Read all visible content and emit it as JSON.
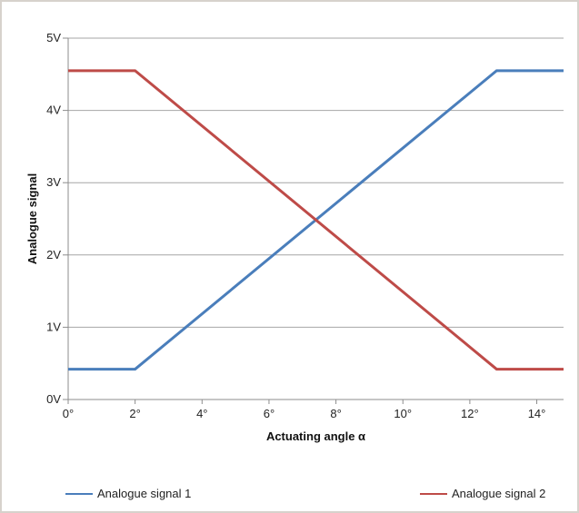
{
  "chart_data": {
    "type": "line",
    "title": "",
    "xlabel": "Actuating angle α",
    "ylabel": "Analogue signal",
    "xlim": [
      0,
      14.8
    ],
    "ylim": [
      0,
      5
    ],
    "grid": "horizontal",
    "x_ticks": [
      {
        "value": 0,
        "label": "0°"
      },
      {
        "value": 2,
        "label": "2°"
      },
      {
        "value": 4,
        "label": "4°"
      },
      {
        "value": 6,
        "label": "6°"
      },
      {
        "value": 8,
        "label": "8°"
      },
      {
        "value": 10,
        "label": "10°"
      },
      {
        "value": 12,
        "label": "12°"
      },
      {
        "value": 14,
        "label": "14°"
      }
    ],
    "y_ticks": [
      {
        "value": 0,
        "label": "0V"
      },
      {
        "value": 1,
        "label": "1V"
      },
      {
        "value": 2,
        "label": "2V"
      },
      {
        "value": 3,
        "label": "3V"
      },
      {
        "value": 4,
        "label": "4V"
      },
      {
        "value": 5,
        "label": "5V"
      }
    ],
    "legend_position": "bottom",
    "series": [
      {
        "name": "Analogue signal 1",
        "color": "#4a7ebb",
        "x": [
          0,
          2,
          12.8,
          14.8
        ],
        "y": [
          0.42,
          0.42,
          4.55,
          4.55
        ]
      },
      {
        "name": "Analogue signal 2",
        "color": "#be4b48",
        "x": [
          0,
          2,
          12.8,
          14.8
        ],
        "y": [
          4.55,
          4.55,
          0.42,
          0.42
        ]
      }
    ]
  }
}
